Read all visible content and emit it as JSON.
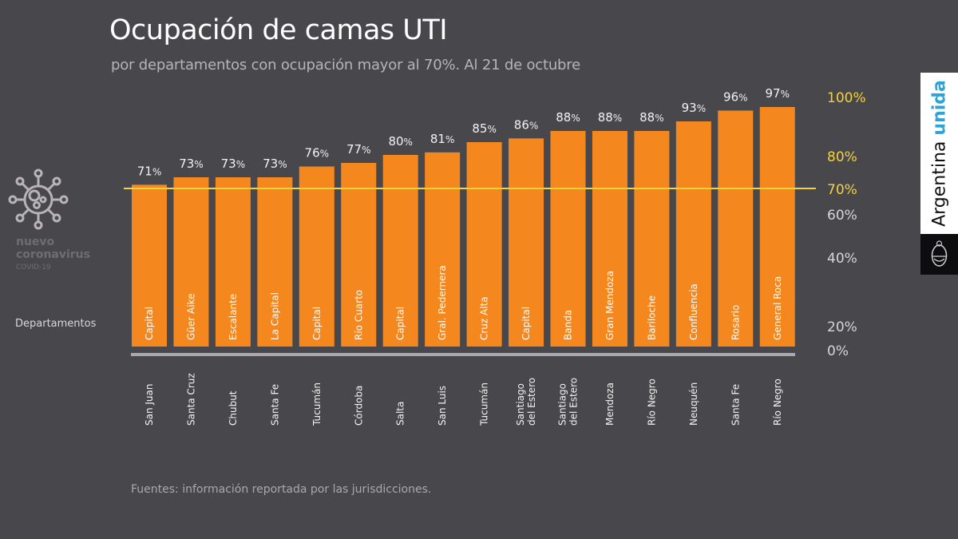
{
  "header": {
    "title": "Ocupación de camas UTI",
    "subtitle": "por departamentos con ocupación mayor al 70%. Al 21 de octubre"
  },
  "branding": {
    "icon": "coronavirus-icon",
    "line1": "nuevo",
    "line2": "coronavirus",
    "line3": "COVID-19",
    "side_text": "Argentina",
    "side_text_highlight": "unida",
    "seal_icon": "argentina-coat-of-arms-icon"
  },
  "axis_left_label": "Departamentos",
  "footer": {
    "source": "Fuentes: información reportada por las jurisdicciones."
  },
  "colors": {
    "background": "#48484c",
    "bar": "#f5871f",
    "threshold_line": "#f3d23a",
    "highlight_ticks": "#f3d23a",
    "normal_ticks": "#d6d5d9",
    "baseline": "#aaa9ae",
    "brand_accent": "#2ea3d6"
  },
  "chart_data": {
    "type": "bar",
    "title": "Ocupación de camas UTI",
    "subtitle": "por departamentos con ocupación mayor al 70%. Al 21 de octubre",
    "xlabel": "Departamentos",
    "ylabel": "",
    "ylim": [
      0,
      100
    ],
    "y_ticks": [
      "0%",
      "20%",
      "40%",
      "60%",
      "70%",
      "80%",
      "100%"
    ],
    "y_tick_values": [
      0,
      20,
      40,
      60,
      70,
      80,
      100
    ],
    "highlighted_ticks": [
      70,
      80,
      100
    ],
    "threshold": {
      "value": 70,
      "label": "70%"
    },
    "grid": false,
    "legend": "none",
    "unit_suffix": "%",
    "categories": [
      "Capital",
      "Güer Aike",
      "Escalante",
      "La Capital",
      "Capital",
      "Río Cuarto",
      "Capital",
      "Gral. Pedernera",
      "Cruz Alta",
      "Capital",
      "Banda",
      "Gran Mendoza",
      "Bariloche",
      "Confluencia",
      "Rosario",
      "General Roca"
    ],
    "provinces": [
      "San Juan",
      "Santa Cruz",
      "Chubut",
      "Santa Fe",
      "Tucumán",
      "Córdoba",
      "Salta",
      "San Luis",
      "Tucumán",
      "Santiago del Estero",
      "Santiago del Estero",
      "Mendoza",
      "Río Negro",
      "Neuquén",
      "Santa Fe",
      "Río Negro"
    ],
    "values": [
      71,
      73,
      73,
      73,
      76,
      77,
      80,
      81,
      85,
      86,
      88,
      88,
      88,
      93,
      96,
      97
    ]
  }
}
